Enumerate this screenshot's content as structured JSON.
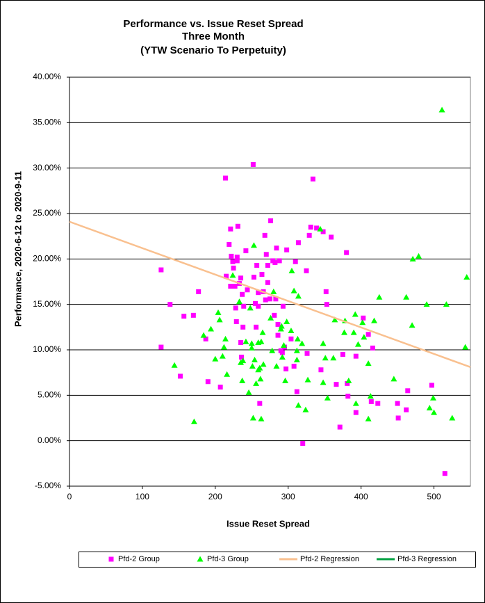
{
  "chart_data": {
    "type": "scatter",
    "title": [
      "Performance vs. Issue Reset Spread",
      "Three Month",
      "(YTW Scenario To Perpetuity)"
    ],
    "x_label": "Issue  Reset  Spread",
    "y_label": "Performance, 2020-6-12  to 2020-9-11",
    "xlim": [
      0,
      550
    ],
    "xticks": [
      0,
      100,
      200,
      300,
      400,
      500
    ],
    "ylim": [
      -5,
      40
    ],
    "yticks": [
      {
        "value": -5,
        "label": "-5.00%"
      },
      {
        "value": 0,
        "label": "0.00%"
      },
      {
        "value": 5,
        "label": "5.00%"
      },
      {
        "value": 10,
        "label": "10.00%"
      },
      {
        "value": 15,
        "label": "15.00%"
      },
      {
        "value": 20,
        "label": "20.00%"
      },
      {
        "value": 25,
        "label": "25.00%"
      },
      {
        "value": 30,
        "label": "30.00%"
      },
      {
        "value": 35,
        "label": "35.00%"
      },
      {
        "value": 40,
        "label": "40.00%"
      }
    ],
    "grid": true,
    "legend": "bottom",
    "series": [
      {
        "name": "Pfd-2 Group",
        "color": "#ff00ff",
        "marker": "square",
        "x": [
          125.7,
          125.7,
          138,
          152,
          157,
          170,
          177,
          187,
          190,
          207,
          214,
          215,
          219,
          221,
          221,
          222,
          224,
          225,
          227,
          228,
          230,
          231,
          230,
          229,
          233,
          235,
          235,
          236,
          237,
          238,
          239,
          242,
          244,
          252,
          253,
          255,
          256,
          257,
          259,
          259,
          261,
          264,
          266,
          268,
          269,
          270,
          272,
          272,
          275,
          276,
          279,
          281,
          282,
          283,
          284,
          286,
          286,
          288,
          290,
          292,
          293,
          295,
          297,
          298,
          304,
          308,
          310,
          312,
          314,
          320,
          325,
          326,
          329,
          331,
          334,
          339,
          345,
          348,
          352,
          353,
          359,
          366,
          371,
          375,
          380,
          382,
          381,
          393,
          393,
          403,
          410,
          414,
          416,
          423,
          450,
          451,
          462,
          464,
          497,
          515
        ],
        "values": [
          18.8,
          10.3,
          15.0,
          7.1,
          13.7,
          13.8,
          16.4,
          11.2,
          6.5,
          5.9,
          28.9,
          18.1,
          21.6,
          17.0,
          23.3,
          20.3,
          19.7,
          19.0,
          17.0,
          14.6,
          20.2,
          23.6,
          19.8,
          13.1,
          17.3,
          10.8,
          17.9,
          9.2,
          16.1,
          12.5,
          14.8,
          20.9,
          16.6,
          30.4,
          18.0,
          15.1,
          12.5,
          19.3,
          14.8,
          16.3,
          4.1,
          18.3,
          16.4,
          22.6,
          15.5,
          20.5,
          19.3,
          17.4,
          15.6,
          24.2,
          19.8,
          13.8,
          19.6,
          15.6,
          21.2,
          11.6,
          12.8,
          19.8,
          9.9,
          9.7,
          14.8,
          10.3,
          7.9,
          21.0,
          11.2,
          8.2,
          19.7,
          5.4,
          21.8,
          -0.3,
          18.7,
          9.6,
          22.6,
          23.5,
          28.8,
          23.4,
          7.8,
          23.0,
          16.4,
          15.0,
          22.4,
          6.2,
          1.5,
          9.5,
          20.7,
          4.9,
          6.3,
          3.1,
          9.3,
          13.5,
          11.7,
          4.3,
          10.2,
          4.1,
          4.1,
          2.5,
          3.4,
          5.5,
          6.1,
          -3.6
        ]
      },
      {
        "name": "Pfd-3 Group",
        "color": "#00ff00",
        "marker": "triangle",
        "x": [
          144,
          171,
          184,
          194,
          200,
          204,
          206,
          210,
          212,
          214,
          216,
          224,
          233,
          235,
          237,
          238,
          242,
          246,
          248,
          250,
          250,
          251,
          252,
          253,
          254,
          256,
          259,
          259,
          261,
          263,
          263,
          265,
          266,
          262,
          276,
          278,
          280,
          284,
          290,
          291,
          292,
          294,
          296,
          298,
          304,
          305,
          308,
          312,
          312,
          313,
          314,
          314,
          319,
          324,
          327,
          344,
          348,
          348,
          351,
          354,
          362,
          364,
          377,
          378,
          383,
          390,
          392,
          393,
          396,
          402,
          404,
          410,
          410,
          413,
          418,
          425,
          445,
          462,
          470,
          471,
          479,
          490,
          494,
          499,
          500,
          511,
          517,
          525,
          543,
          545
        ],
        "values": [
          8.3,
          2.1,
          11.6,
          12.3,
          9.0,
          14.1,
          13.3,
          9.3,
          10.3,
          11.2,
          7.3,
          18.2,
          15.3,
          8.6,
          6.6,
          8.8,
          10.9,
          5.3,
          14.6,
          10.7,
          10.2,
          8.2,
          2.5,
          21.5,
          8.9,
          6.3,
          10.8,
          7.8,
          8.0,
          10.9,
          2.4,
          11.9,
          8.4,
          6.8,
          13.5,
          9.9,
          16.4,
          8.2,
          12.3,
          12.6,
          9.2,
          10.5,
          6.6,
          13.1,
          12.1,
          18.7,
          16.5,
          8.9,
          9.9,
          11.2,
          15.9,
          3.9,
          10.7,
          3.4,
          6.7,
          23.3,
          10.7,
          6.4,
          9.1,
          4.7,
          9.1,
          13.3,
          11.9,
          13.2,
          6.6,
          11.9,
          13.9,
          4.1,
          10.6,
          13.0,
          11.4,
          8.5,
          2.4,
          4.9,
          13.2,
          15.8,
          6.8,
          15.8,
          12.7,
          20.0,
          20.3,
          15.0,
          3.6,
          4.7,
          3.1,
          36.4,
          15.0,
          2.5,
          10.3,
          18.0
        ]
      },
      {
        "name": "Pfd-2 Regression",
        "color": "#f9c08f",
        "marker": "line",
        "x": [
          0,
          550
        ],
        "values": [
          24.1,
          8.1
        ]
      },
      {
        "name": "Pfd-3 Regression",
        "color": "#00a040",
        "marker": "line",
        "x": [],
        "values": []
      }
    ]
  }
}
